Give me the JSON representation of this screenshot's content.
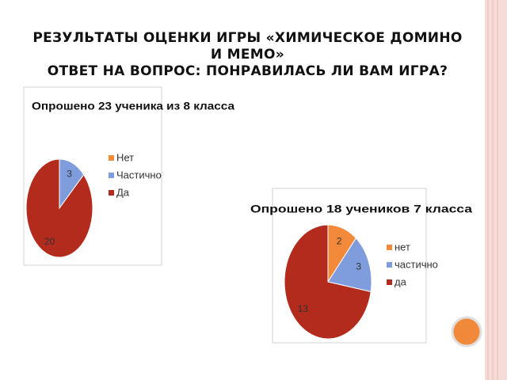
{
  "title": [
    "РЕЗУЛЬТАТЫ ОЦЕНКИ ИГРЫ «ХИМИЧЕСКОЕ ДОМИНО И МЕМО»",
    "ОТВЕТ НА ВОПРОС: ПОНРАВИЛАСЬ ЛИ ВАМ ИГРА?"
  ],
  "chart_data": [
    {
      "type": "pie",
      "title": "Опрошено 23 ученика из 8 класса",
      "categories": [
        "Нет",
        "Частично",
        "Да"
      ],
      "values": [
        0,
        3,
        20
      ],
      "colors": [
        "#f3893a",
        "#7f9ddc",
        "#b22b1c"
      ],
      "legend": "right"
    },
    {
      "type": "pie",
      "title": "Опрошено 18 учеников 7 класса",
      "categories": [
        "нет",
        "частично",
        "да"
      ],
      "values": [
        2,
        3,
        13
      ],
      "colors": [
        "#f3893a",
        "#7f9ddc",
        "#b22b1c"
      ],
      "legend": "right"
    }
  ]
}
